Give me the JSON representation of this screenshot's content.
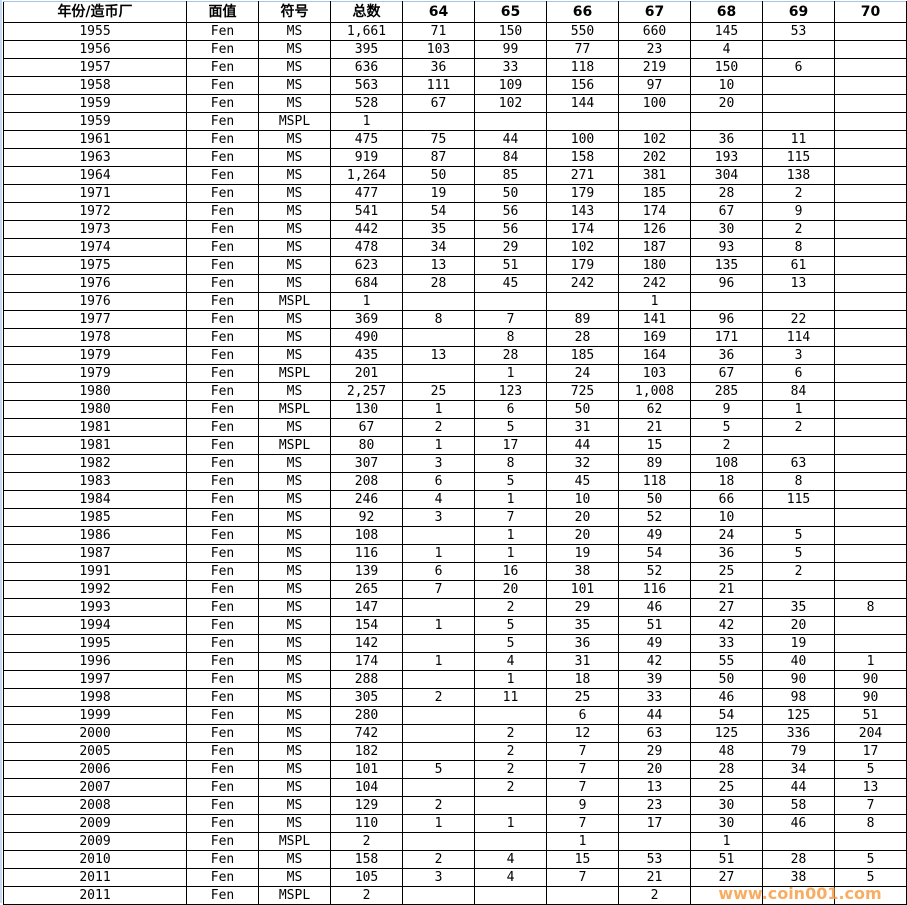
{
  "headers": [
    "年份/造币厂",
    "面值",
    "符号",
    "总数",
    "64",
    "65",
    "66",
    "67",
    "68",
    "69",
    "70"
  ],
  "rows": [
    [
      "1955",
      "Fen",
      "MS",
      "1,661",
      "71",
      "150",
      "550",
      "660",
      "145",
      "53",
      ""
    ],
    [
      "1956",
      "Fen",
      "MS",
      "395",
      "103",
      "99",
      "77",
      "23",
      "4",
      "",
      ""
    ],
    [
      "1957",
      "Fen",
      "MS",
      "636",
      "36",
      "33",
      "118",
      "219",
      "150",
      "6",
      ""
    ],
    [
      "1958",
      "Fen",
      "MS",
      "563",
      "111",
      "109",
      "156",
      "97",
      "10",
      "",
      ""
    ],
    [
      "1959",
      "Fen",
      "MS",
      "528",
      "67",
      "102",
      "144",
      "100",
      "20",
      "",
      ""
    ],
    [
      "1959",
      "Fen",
      "MSPL",
      "1",
      "",
      "",
      "",
      "",
      "",
      "",
      ""
    ],
    [
      "1961",
      "Fen",
      "MS",
      "475",
      "75",
      "44",
      "100",
      "102",
      "36",
      "11",
      ""
    ],
    [
      "1963",
      "Fen",
      "MS",
      "919",
      "87",
      "84",
      "158",
      "202",
      "193",
      "115",
      ""
    ],
    [
      "1964",
      "Fen",
      "MS",
      "1,264",
      "50",
      "85",
      "271",
      "381",
      "304",
      "138",
      ""
    ],
    [
      "1971",
      "Fen",
      "MS",
      "477",
      "19",
      "50",
      "179",
      "185",
      "28",
      "2",
      ""
    ],
    [
      "1972",
      "Fen",
      "MS",
      "541",
      "54",
      "56",
      "143",
      "174",
      "67",
      "9",
      ""
    ],
    [
      "1973",
      "Fen",
      "MS",
      "442",
      "35",
      "56",
      "174",
      "126",
      "30",
      "2",
      ""
    ],
    [
      "1974",
      "Fen",
      "MS",
      "478",
      "34",
      "29",
      "102",
      "187",
      "93",
      "8",
      ""
    ],
    [
      "1975",
      "Fen",
      "MS",
      "623",
      "13",
      "51",
      "179",
      "180",
      "135",
      "61",
      ""
    ],
    [
      "1976",
      "Fen",
      "MS",
      "684",
      "28",
      "45",
      "242",
      "242",
      "96",
      "13",
      ""
    ],
    [
      "1976",
      "Fen",
      "MSPL",
      "1",
      "",
      "",
      "",
      "1",
      "",
      "",
      ""
    ],
    [
      "1977",
      "Fen",
      "MS",
      "369",
      "8",
      "7",
      "89",
      "141",
      "96",
      "22",
      ""
    ],
    [
      "1978",
      "Fen",
      "MS",
      "490",
      "",
      "8",
      "28",
      "169",
      "171",
      "114",
      ""
    ],
    [
      "1979",
      "Fen",
      "MS",
      "435",
      "13",
      "28",
      "185",
      "164",
      "36",
      "3",
      ""
    ],
    [
      "1979",
      "Fen",
      "MSPL",
      "201",
      "",
      "1",
      "24",
      "103",
      "67",
      "6",
      ""
    ],
    [
      "1980",
      "Fen",
      "MS",
      "2,257",
      "25",
      "123",
      "725",
      "1,008",
      "285",
      "84",
      ""
    ],
    [
      "1980",
      "Fen",
      "MSPL",
      "130",
      "1",
      "6",
      "50",
      "62",
      "9",
      "1",
      ""
    ],
    [
      "1981",
      "Fen",
      "MS",
      "67",
      "2",
      "5",
      "31",
      "21",
      "5",
      "2",
      ""
    ],
    [
      "1981",
      "Fen",
      "MSPL",
      "80",
      "1",
      "17",
      "44",
      "15",
      "2",
      "",
      ""
    ],
    [
      "1982",
      "Fen",
      "MS",
      "307",
      "3",
      "8",
      "32",
      "89",
      "108",
      "63",
      ""
    ],
    [
      "1983",
      "Fen",
      "MS",
      "208",
      "6",
      "5",
      "45",
      "118",
      "18",
      "8",
      ""
    ],
    [
      "1984",
      "Fen",
      "MS",
      "246",
      "4",
      "1",
      "10",
      "50",
      "66",
      "115",
      ""
    ],
    [
      "1985",
      "Fen",
      "MS",
      "92",
      "3",
      "7",
      "20",
      "52",
      "10",
      "",
      ""
    ],
    [
      "1986",
      "Fen",
      "MS",
      "108",
      "",
      "1",
      "20",
      "49",
      "24",
      "5",
      ""
    ],
    [
      "1987",
      "Fen",
      "MS",
      "116",
      "1",
      "1",
      "19",
      "54",
      "36",
      "5",
      ""
    ],
    [
      "1991",
      "Fen",
      "MS",
      "139",
      "6",
      "16",
      "38",
      "52",
      "25",
      "2",
      ""
    ],
    [
      "1992",
      "Fen",
      "MS",
      "265",
      "7",
      "20",
      "101",
      "116",
      "21",
      "",
      ""
    ],
    [
      "1993",
      "Fen",
      "MS",
      "147",
      "",
      "2",
      "29",
      "46",
      "27",
      "35",
      "8"
    ],
    [
      "1994",
      "Fen",
      "MS",
      "154",
      "1",
      "5",
      "35",
      "51",
      "42",
      "20",
      ""
    ],
    [
      "1995",
      "Fen",
      "MS",
      "142",
      "",
      "5",
      "36",
      "49",
      "33",
      "19",
      ""
    ],
    [
      "1996",
      "Fen",
      "MS",
      "174",
      "1",
      "4",
      "31",
      "42",
      "55",
      "40",
      "1"
    ],
    [
      "1997",
      "Fen",
      "MS",
      "288",
      "",
      "1",
      "18",
      "39",
      "50",
      "90",
      "90"
    ],
    [
      "1998",
      "Fen",
      "MS",
      "305",
      "2",
      "11",
      "25",
      "33",
      "46",
      "98",
      "90"
    ],
    [
      "1999",
      "Fen",
      "MS",
      "280",
      "",
      "",
      "6",
      "44",
      "54",
      "125",
      "51"
    ],
    [
      "2000",
      "Fen",
      "MS",
      "742",
      "",
      "2",
      "12",
      "63",
      "125",
      "336",
      "204"
    ],
    [
      "2005",
      "Fen",
      "MS",
      "182",
      "",
      "2",
      "7",
      "29",
      "48",
      "79",
      "17"
    ],
    [
      "2006",
      "Fen",
      "MS",
      "101",
      "5",
      "2",
      "7",
      "20",
      "28",
      "34",
      "5"
    ],
    [
      "2007",
      "Fen",
      "MS",
      "104",
      "",
      "2",
      "7",
      "13",
      "25",
      "44",
      "13"
    ],
    [
      "2008",
      "Fen",
      "MS",
      "129",
      "2",
      "",
      "9",
      "23",
      "30",
      "58",
      "7"
    ],
    [
      "2009",
      "Fen",
      "MS",
      "110",
      "1",
      "1",
      "7",
      "17",
      "30",
      "46",
      "8"
    ],
    [
      "2009",
      "Fen",
      "MSPL",
      "2",
      "",
      "",
      "1",
      "",
      "1",
      "",
      ""
    ],
    [
      "2010",
      "Fen",
      "MS",
      "158",
      "2",
      "4",
      "15",
      "53",
      "51",
      "28",
      "5"
    ],
    [
      "2011",
      "Fen",
      "MS",
      "105",
      "3",
      "4",
      "7",
      "21",
      "27",
      "38",
      "5"
    ],
    [
      "2011",
      "Fen",
      "MSPL",
      "2",
      "",
      "",
      "",
      "2",
      "",
      "",
      ""
    ]
  ],
  "watermark": "www.coin001.com"
}
